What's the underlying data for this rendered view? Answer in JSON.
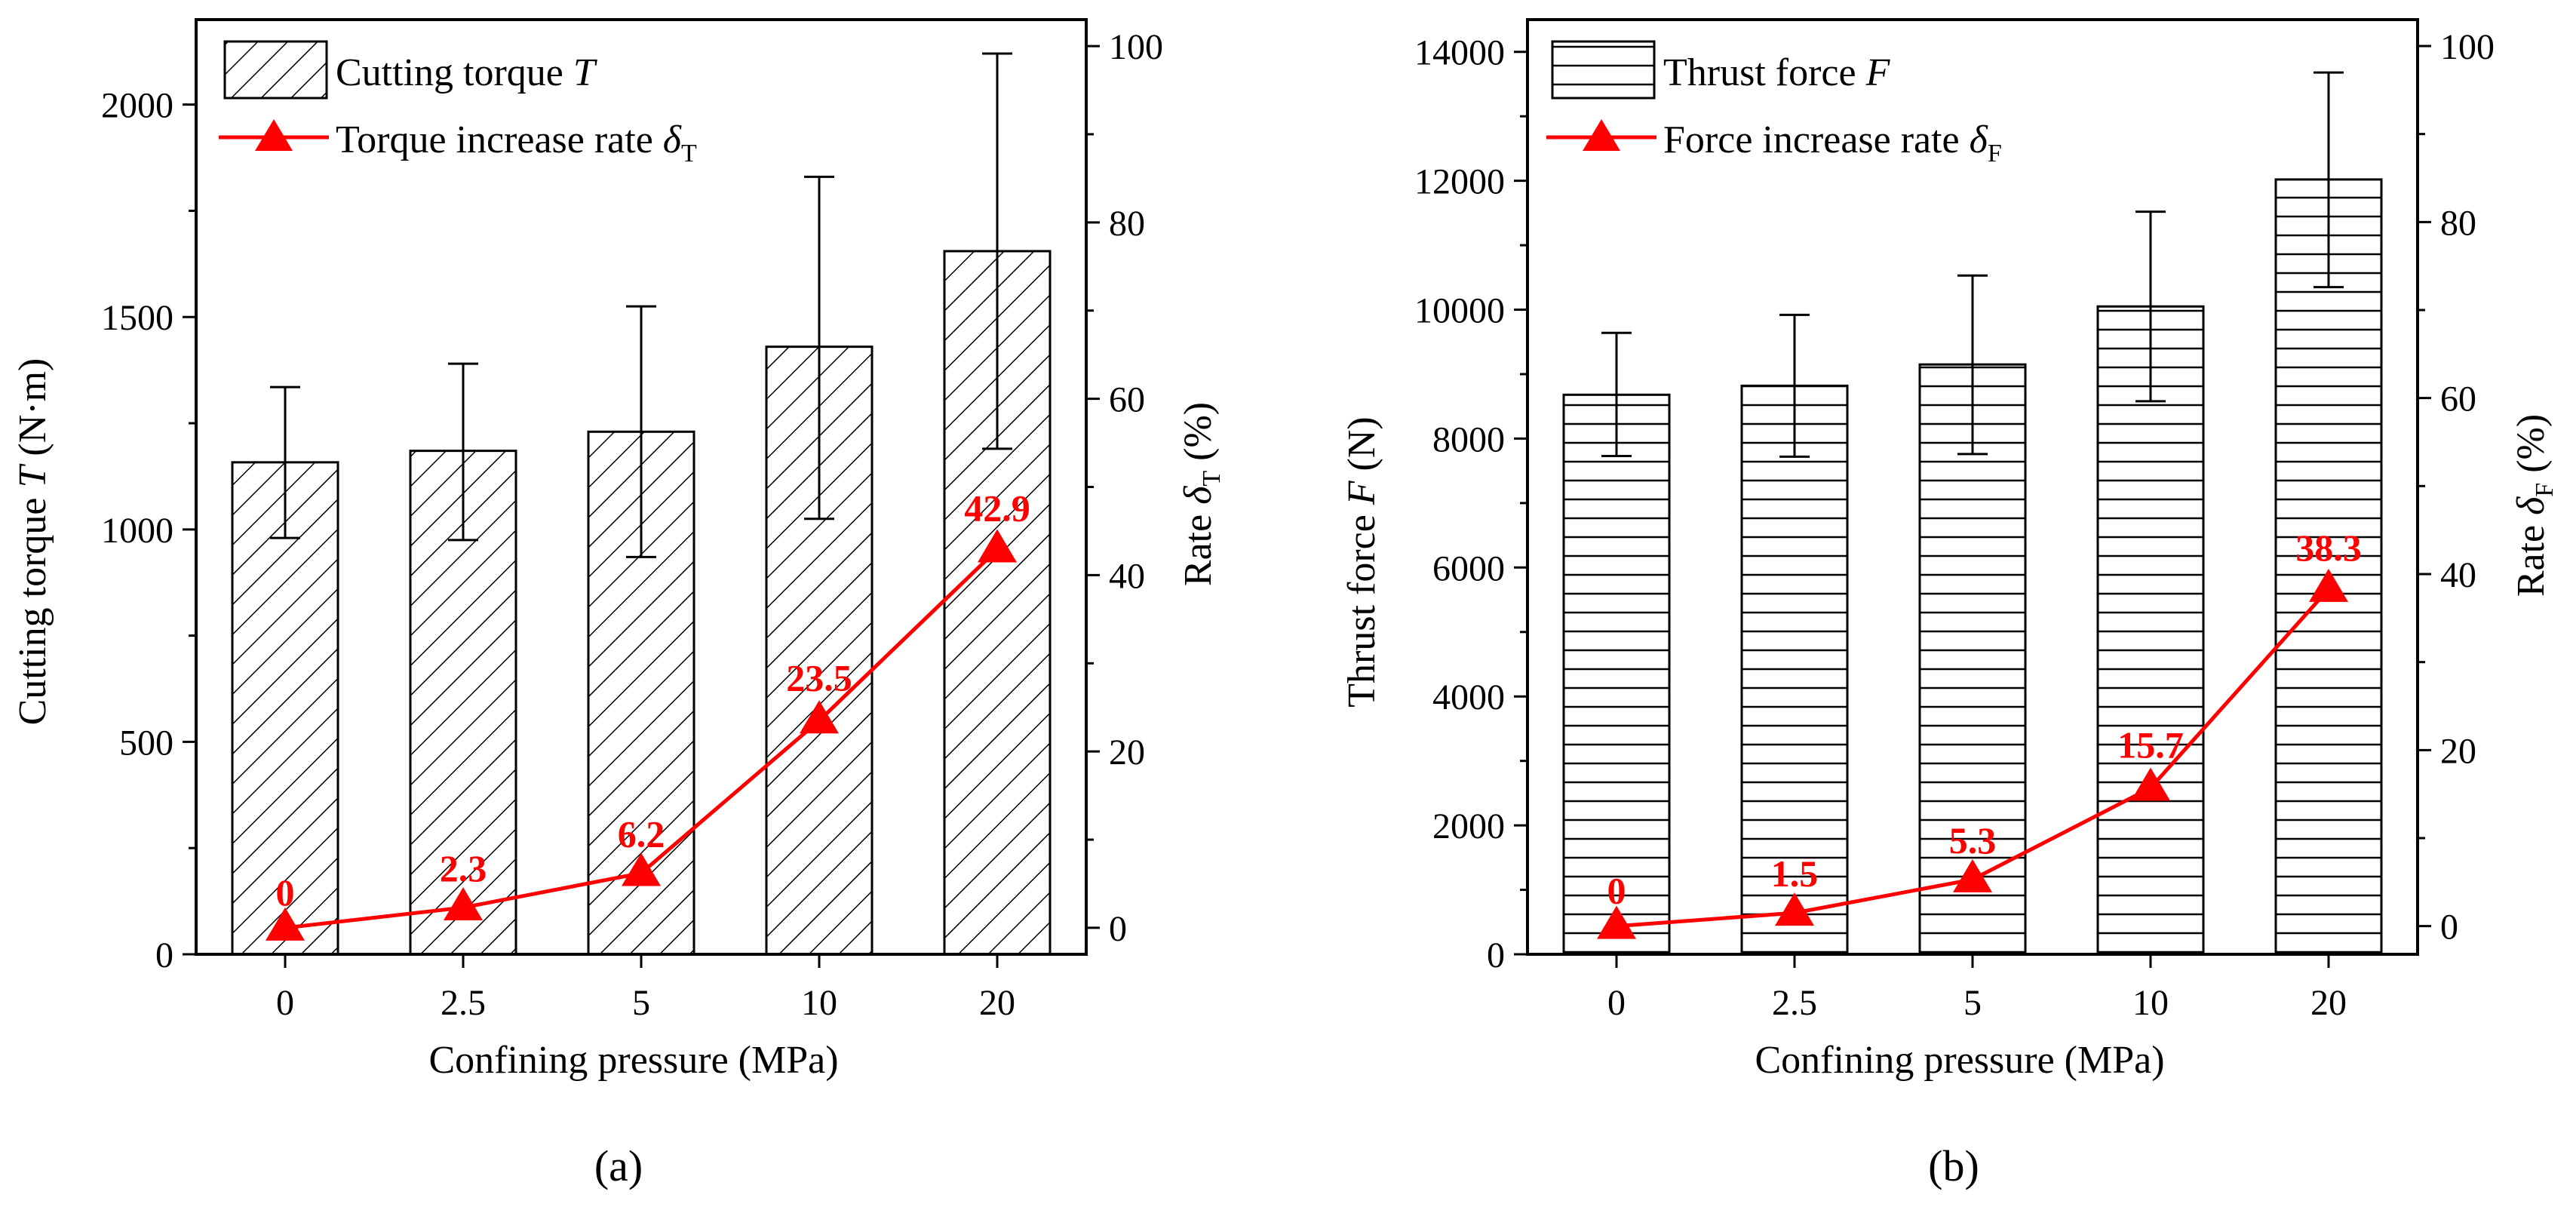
{
  "colors": {
    "axis": "#000000",
    "bar_fill": "#ffffff",
    "hatch": "#000000",
    "rate_series": "#ff0000"
  },
  "panels": [
    {
      "panel_label": "(a)",
      "legend": {
        "bar": {
          "label": "Cutting torque ",
          "symbol": "T"
        },
        "line": {
          "label": "Torque increase rate ",
          "symbol": "δ",
          "subscript": "T"
        }
      },
      "x_axis_label": "Confining pressure (MPa)",
      "y_axis_left_label": {
        "text": "Cutting torque ",
        "symbol": "T",
        "unit": " (N·m)"
      },
      "y_axis_right_label": {
        "text": "Rate ",
        "symbol": "δ",
        "subscript": "T",
        "unit": " (%)"
      }
    },
    {
      "panel_label": "(b)",
      "legend": {
        "bar": {
          "label": "Thrust force ",
          "symbol": "F"
        },
        "line": {
          "label": "Force increase rate ",
          "symbol": "δ",
          "subscript": "F"
        }
      },
      "x_axis_label": "Confining pressure (MPa)",
      "y_axis_left_label": {
        "text": "Thrust force ",
        "symbol": "F",
        "unit": " (N)"
      },
      "y_axis_right_label": {
        "text": "Rate ",
        "symbol": "δ",
        "subscript": "F",
        "unit": " (%)"
      }
    }
  ],
  "chart_data": [
    {
      "type": "bar",
      "categories": [
        "0",
        "2.5",
        "5",
        "10",
        "20"
      ],
      "hatch": "diagonal",
      "ylim_left": [
        0,
        2200
      ],
      "yticks_left": [
        0,
        500,
        1000,
        1500,
        2000
      ],
      "ylim_right": [
        -3,
        103
      ],
      "yticks_right": [
        0,
        20,
        40,
        60,
        80,
        100
      ],
      "series": [
        {
          "axis": "left",
          "kind": "bar",
          "values": [
            1158,
            1185,
            1230,
            1430,
            1655
          ],
          "error_low": [
            980,
            975,
            935,
            1025,
            1190
          ],
          "error_high": [
            1335,
            1390,
            1525,
            1830,
            2120
          ]
        },
        {
          "axis": "right",
          "kind": "line",
          "marker": "triangle",
          "values": [
            0,
            2.3,
            6.2,
            23.5,
            42.9
          ],
          "labels": [
            "0",
            "2.3",
            "6.2",
            "23.5",
            "42.9"
          ]
        }
      ],
      "grid": false,
      "legend_position": "top-left"
    },
    {
      "type": "bar",
      "categories": [
        "0",
        "2.5",
        "5",
        "10",
        "20"
      ],
      "hatch": "horizontal",
      "ylim_left": [
        0,
        14500
      ],
      "yticks_left": [
        0,
        2000,
        4000,
        6000,
        8000,
        10000,
        12000,
        14000
      ],
      "ylim_right": [
        -3.2,
        103
      ],
      "yticks_right": [
        0,
        20,
        40,
        60,
        80,
        100
      ],
      "series": [
        {
          "axis": "left",
          "kind": "bar",
          "values": [
            8680,
            8820,
            9150,
            10050,
            12020
          ],
          "error_low": [
            7730,
            7720,
            7760,
            8580,
            10350
          ],
          "error_high": [
            9640,
            9920,
            10530,
            11520,
            13680
          ]
        },
        {
          "axis": "right",
          "kind": "line",
          "marker": "triangle",
          "values": [
            0,
            1.5,
            5.3,
            15.7,
            38.3
          ],
          "labels": [
            "0",
            "1.5",
            "5.3",
            "15.7",
            "38.3"
          ]
        }
      ],
      "grid": false,
      "legend_position": "top-left"
    }
  ]
}
